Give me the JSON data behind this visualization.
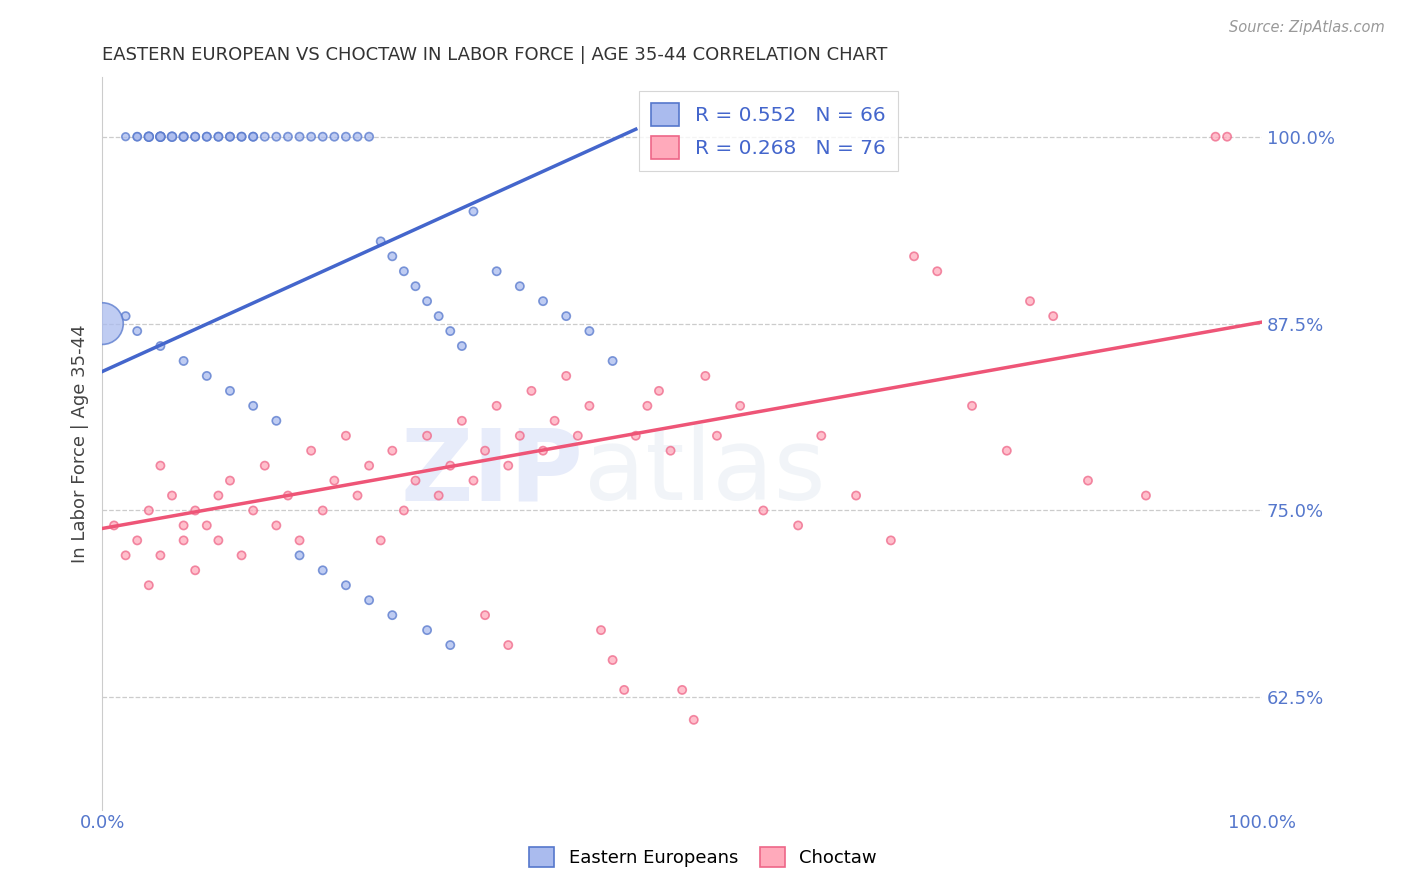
{
  "title": "EASTERN EUROPEAN VS CHOCTAW IN LABOR FORCE | AGE 35-44 CORRELATION CHART",
  "source": "Source: ZipAtlas.com",
  "ylabel": "In Labor Force | Age 35-44",
  "xlim": [
    0.0,
    1.0
  ],
  "ylim": [
    0.55,
    1.04
  ],
  "ytick_labels": [
    "62.5%",
    "75.0%",
    "87.5%",
    "100.0%"
  ],
  "ytick_values": [
    0.625,
    0.75,
    0.875,
    1.0
  ],
  "xtick_labels": [
    "0.0%",
    "100.0%"
  ],
  "xtick_values": [
    0.0,
    1.0
  ],
  "legend_labels": [
    "Eastern Europeans",
    "Choctaw"
  ],
  "blue_fill": "#AABBEE",
  "blue_edge": "#5577CC",
  "pink_fill": "#FFAABB",
  "pink_edge": "#EE6688",
  "blue_line_color": "#4466CC",
  "pink_line_color": "#EE5577",
  "R_blue": 0.552,
  "N_blue": 66,
  "R_pink": 0.268,
  "N_pink": 76,
  "watermark_text": "ZIPatlas",
  "background_color": "#FFFFFF",
  "grid_color": "#CCCCCC",
  "title_color": "#333333",
  "axis_label_color": "#444444",
  "tick_label_color_right": "#5577CC",
  "tick_label_color_bottom": "#5577CC",
  "legend_text_color": "#4466CC",
  "blue_x": [
    0.02,
    0.03,
    0.03,
    0.04,
    0.04,
    0.04,
    0.05,
    0.05,
    0.05,
    0.06,
    0.06,
    0.07,
    0.07,
    0.08,
    0.08,
    0.09,
    0.09,
    0.1,
    0.1,
    0.11,
    0.11,
    0.12,
    0.12,
    0.13,
    0.13,
    0.14,
    0.15,
    0.16,
    0.17,
    0.18,
    0.19,
    0.2,
    0.21,
    0.22,
    0.23,
    0.24,
    0.25,
    0.26,
    0.27,
    0.28,
    0.29,
    0.3,
    0.31,
    0.32,
    0.34,
    0.36,
    0.38,
    0.4,
    0.42,
    0.44,
    0.02,
    0.03,
    0.05,
    0.07,
    0.09,
    0.11,
    0.13,
    0.15,
    0.17,
    0.19,
    0.21,
    0.23,
    0.25,
    0.28,
    0.3,
    0.0
  ],
  "blue_y": [
    1.0,
    1.0,
    1.0,
    1.0,
    1.0,
    1.0,
    1.0,
    1.0,
    1.0,
    1.0,
    1.0,
    1.0,
    1.0,
    1.0,
    1.0,
    1.0,
    1.0,
    1.0,
    1.0,
    1.0,
    1.0,
    1.0,
    1.0,
    1.0,
    1.0,
    1.0,
    1.0,
    1.0,
    1.0,
    1.0,
    1.0,
    1.0,
    1.0,
    1.0,
    1.0,
    0.93,
    0.92,
    0.91,
    0.9,
    0.89,
    0.88,
    0.87,
    0.86,
    0.95,
    0.91,
    0.9,
    0.89,
    0.88,
    0.87,
    0.85,
    0.88,
    0.87,
    0.86,
    0.85,
    0.84,
    0.83,
    0.82,
    0.81,
    0.72,
    0.71,
    0.7,
    0.69,
    0.68,
    0.67,
    0.66,
    0.875
  ],
  "blue_sizes": [
    30,
    30,
    35,
    35,
    40,
    40,
    40,
    40,
    40,
    40,
    40,
    40,
    35,
    35,
    35,
    35,
    35,
    35,
    35,
    35,
    35,
    35,
    35,
    35,
    35,
    35,
    35,
    35,
    35,
    35,
    35,
    35,
    35,
    35,
    35,
    35,
    35,
    35,
    35,
    35,
    35,
    35,
    35,
    35,
    35,
    35,
    35,
    35,
    35,
    35,
    35,
    35,
    35,
    35,
    35,
    35,
    35,
    35,
    35,
    35,
    35,
    35,
    35,
    35,
    35,
    900
  ],
  "pink_x": [
    0.01,
    0.02,
    0.03,
    0.04,
    0.04,
    0.05,
    0.05,
    0.06,
    0.07,
    0.07,
    0.08,
    0.08,
    0.09,
    0.1,
    0.1,
    0.11,
    0.12,
    0.13,
    0.14,
    0.15,
    0.16,
    0.17,
    0.18,
    0.19,
    0.2,
    0.21,
    0.22,
    0.23,
    0.24,
    0.25,
    0.26,
    0.27,
    0.28,
    0.29,
    0.3,
    0.31,
    0.32,
    0.33,
    0.34,
    0.35,
    0.36,
    0.37,
    0.38,
    0.39,
    0.4,
    0.41,
    0.42,
    0.43,
    0.44,
    0.45,
    0.46,
    0.47,
    0.48,
    0.49,
    0.5,
    0.51,
    0.52,
    0.53,
    0.55,
    0.57,
    0.6,
    0.62,
    0.65,
    0.68,
    0.7,
    0.72,
    0.75,
    0.78,
    0.8,
    0.82,
    0.85,
    0.9,
    0.96,
    0.97,
    0.33,
    0.35
  ],
  "pink_y": [
    0.74,
    0.72,
    0.73,
    0.75,
    0.7,
    0.78,
    0.72,
    0.76,
    0.74,
    0.73,
    0.75,
    0.71,
    0.74,
    0.76,
    0.73,
    0.77,
    0.72,
    0.75,
    0.78,
    0.74,
    0.76,
    0.73,
    0.79,
    0.75,
    0.77,
    0.8,
    0.76,
    0.78,
    0.73,
    0.79,
    0.75,
    0.77,
    0.8,
    0.76,
    0.78,
    0.81,
    0.77,
    0.79,
    0.82,
    0.78,
    0.8,
    0.83,
    0.79,
    0.81,
    0.84,
    0.8,
    0.82,
    0.67,
    0.65,
    0.63,
    0.8,
    0.82,
    0.83,
    0.79,
    0.63,
    0.61,
    0.84,
    0.8,
    0.82,
    0.75,
    0.74,
    0.8,
    0.76,
    0.73,
    0.92,
    0.91,
    0.82,
    0.79,
    0.89,
    0.88,
    0.77,
    0.76,
    1.0,
    1.0,
    0.68,
    0.66
  ],
  "pink_sizes": [
    35,
    35,
    35,
    35,
    35,
    35,
    35,
    35,
    35,
    35,
    35,
    35,
    35,
    35,
    35,
    35,
    35,
    35,
    35,
    35,
    35,
    35,
    35,
    35,
    35,
    35,
    35,
    35,
    35,
    35,
    35,
    35,
    35,
    35,
    35,
    35,
    35,
    35,
    35,
    35,
    35,
    35,
    35,
    35,
    35,
    35,
    35,
    35,
    35,
    35,
    35,
    35,
    35,
    35,
    35,
    35,
    35,
    35,
    35,
    35,
    35,
    35,
    35,
    35,
    35,
    35,
    35,
    35,
    35,
    35,
    35,
    35,
    35,
    35,
    35,
    35
  ],
  "blue_trendline_x": [
    0.0,
    0.46
  ],
  "blue_trendline_y": [
    0.843,
    1.005
  ],
  "pink_trendline_x": [
    0.0,
    1.0
  ],
  "pink_trendline_y": [
    0.738,
    0.876
  ]
}
